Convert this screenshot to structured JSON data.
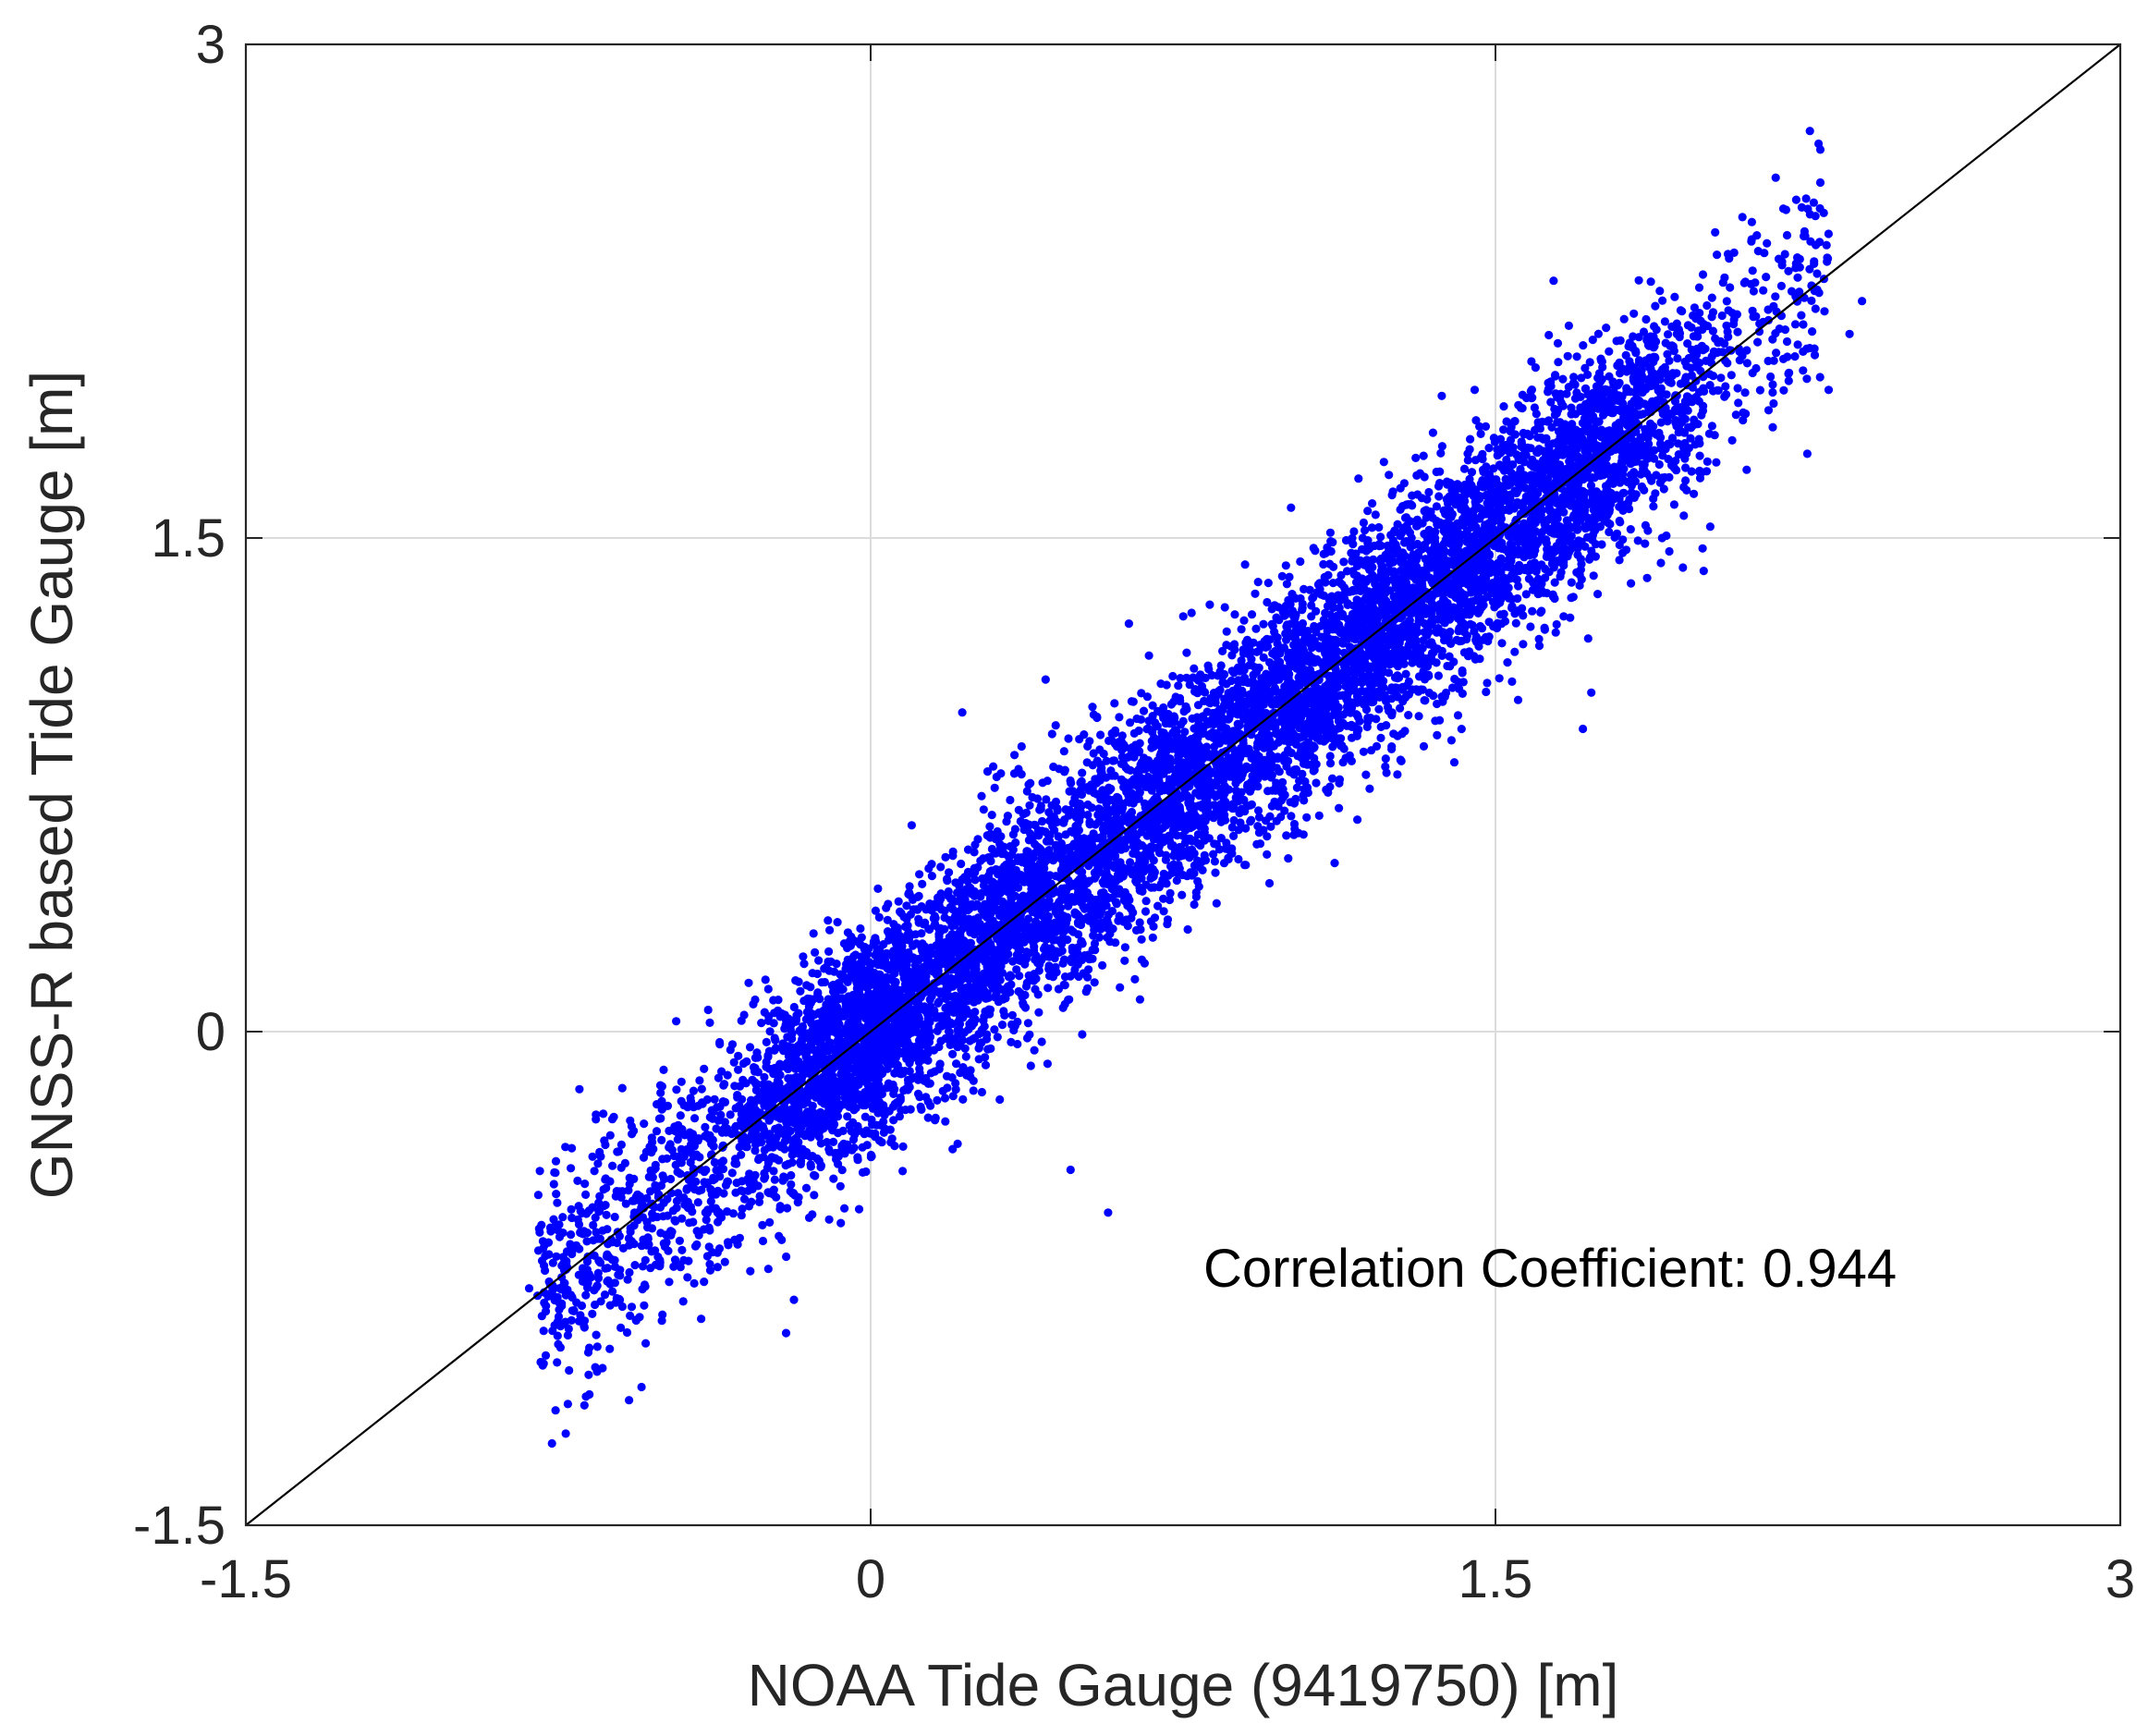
{
  "chart_data": {
    "type": "scatter",
    "title": "",
    "xlabel": "NOAA Tide Gauge (9419750) [m]",
    "ylabel": "GNSS-R based Tide Gauge [m]",
    "xlim": [
      -1.5,
      3
    ],
    "ylim": [
      -1.5,
      3
    ],
    "xticks": [
      -1.5,
      0,
      1.5,
      3
    ],
    "yticks": [
      -1.5,
      0,
      1.5,
      3
    ],
    "xtick_labels": [
      "-1.5",
      "0",
      "1.5",
      "3"
    ],
    "ytick_labels": [
      "-1.5",
      "0",
      "1.5",
      "3"
    ],
    "grid": true,
    "reference_line": {
      "type": "identity",
      "from": [
        -1.5,
        -1.5
      ],
      "to": [
        3,
        3
      ],
      "color": "#000000"
    },
    "annotation": "Correlation Coefficient: 0.944",
    "correlation_coefficient": 0.944,
    "series": [
      {
        "color": "#0000ff",
        "marker": "dot",
        "distribution": {
          "x_range": [
            -0.8,
            2.3
          ],
          "approx_count": 9000,
          "trend": "y ≈ x",
          "spread_sd": 0.17
        },
        "points": [
          [
            -0.58,
            -1.12
          ],
          [
            -0.55,
            -1.08
          ],
          [
            -0.75,
            -0.95
          ],
          [
            -0.78,
            -0.85
          ],
          [
            -0.72,
            -0.8
          ],
          [
            -0.82,
            -0.78
          ],
          [
            -0.7,
            -0.88
          ],
          [
            -0.6,
            -0.9
          ],
          [
            -0.5,
            -0.86
          ],
          [
            -0.45,
            -0.82
          ],
          [
            -0.4,
            -0.76
          ],
          [
            -0.35,
            -0.7
          ],
          [
            0.48,
            -0.42
          ],
          [
            0.57,
            -0.55
          ],
          [
            0.62,
            1.24
          ],
          [
            0.42,
            1.07
          ],
          [
            0.22,
            0.97
          ],
          [
            1.73,
            1.03
          ],
          [
            1.71,
            0.92
          ],
          [
            1.95,
            1.41
          ],
          [
            2.0,
            2.15
          ],
          [
            2.02,
            2.23
          ],
          [
            2.28,
            2.68
          ],
          [
            2.28,
            2.58
          ],
          [
            2.25,
            2.5
          ],
          [
            2.2,
            2.42
          ],
          [
            2.38,
            2.22
          ],
          [
            2.35,
            2.12
          ],
          [
            2.3,
            1.95
          ],
          [
            2.12,
            2.25
          ],
          [
            1.8,
            2.1
          ],
          [
            1.52,
            1.9
          ],
          [
            1.45,
            1.95
          ],
          [
            1.35,
            1.82
          ],
          [
            2.0,
            1.4
          ],
          [
            1.9,
            1.5
          ]
        ]
      }
    ]
  }
}
